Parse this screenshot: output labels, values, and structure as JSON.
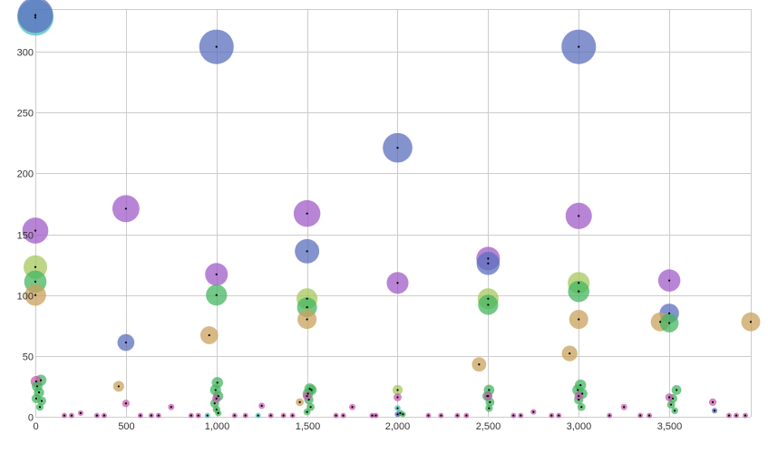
{
  "chart_data": {
    "type": "scatter",
    "title": "",
    "xlabel": "",
    "ylabel": "",
    "xlim": [
      0,
      3950
    ],
    "ylim": [
      0,
      335
    ],
    "x_ticks": [
      0,
      500,
      1000,
      1500,
      2000,
      2500,
      3000,
      3500
    ],
    "x_tick_labels": [
      "0",
      "500",
      "1,000",
      "1,500",
      "2,000",
      "2,500",
      "3,000",
      "3,500"
    ],
    "y_ticks": [
      0,
      50,
      100,
      150,
      200,
      250,
      300
    ],
    "y_tick_labels": [
      "0",
      "50",
      "100",
      "150",
      "200",
      "250",
      "300"
    ],
    "grid": true,
    "legend": "none",
    "colors": {
      "blue": "#5b6fbe",
      "purple": "#a05cc8",
      "green": "#45b660",
      "tan": "#c9a25e",
      "lime": "#a6c85c",
      "teal": "#49c0bc",
      "magenta": "#c85cb0"
    },
    "series": [
      {
        "color": "blue",
        "points": [
          {
            "x": 0,
            "y": 330,
            "size": 320
          },
          {
            "x": 1000,
            "y": 304,
            "size": 300
          },
          {
            "x": 2000,
            "y": 221,
            "size": 220
          },
          {
            "x": 3000,
            "y": 304,
            "size": 300
          },
          {
            "x": 1500,
            "y": 136,
            "size": 150
          },
          {
            "x": 2500,
            "y": 126,
            "size": 135
          },
          {
            "x": 3500,
            "y": 85,
            "size": 95
          },
          {
            "x": 500,
            "y": 61,
            "size": 72
          },
          {
            "x": 2000,
            "y": 2,
            "size": 8
          },
          {
            "x": 3750,
            "y": 5,
            "size": 8
          }
        ]
      },
      {
        "color": "teal",
        "points": [
          {
            "x": 0,
            "y": 328,
            "size": 330
          },
          {
            "x": 2000,
            "y": 7,
            "size": 9
          },
          {
            "x": 950,
            "y": 1,
            "size": 6
          },
          {
            "x": 1230,
            "y": 1,
            "size": 6
          }
        ]
      },
      {
        "color": "purple",
        "points": [
          {
            "x": 0,
            "y": 153,
            "size": 170
          },
          {
            "x": 500,
            "y": 171,
            "size": 185
          },
          {
            "x": 1500,
            "y": 167,
            "size": 180
          },
          {
            "x": 3000,
            "y": 165,
            "size": 175
          },
          {
            "x": 1000,
            "y": 117,
            "size": 130
          },
          {
            "x": 2000,
            "y": 110,
            "size": 120
          },
          {
            "x": 2500,
            "y": 130,
            "size": 140
          },
          {
            "x": 3500,
            "y": 112,
            "size": 125
          }
        ]
      },
      {
        "color": "lime",
        "points": [
          {
            "x": 0,
            "y": 123,
            "size": 140
          },
          {
            "x": 1500,
            "y": 97,
            "size": 110
          },
          {
            "x": 2500,
            "y": 97,
            "size": 110
          },
          {
            "x": 3000,
            "y": 110,
            "size": 120
          },
          {
            "x": 2000,
            "y": 22,
            "size": 26
          }
        ]
      },
      {
        "color": "green",
        "points": [
          {
            "x": 0,
            "y": 111,
            "size": 125
          },
          {
            "x": 1000,
            "y": 100,
            "size": 112
          },
          {
            "x": 1500,
            "y": 90,
            "size": 100
          },
          {
            "x": 2500,
            "y": 92,
            "size": 102
          },
          {
            "x": 3000,
            "y": 103,
            "size": 115
          },
          {
            "x": 3500,
            "y": 77,
            "size": 88
          },
          {
            "x": 30,
            "y": 30,
            "size": 32
          },
          {
            "x": 10,
            "y": 25,
            "size": 28
          },
          {
            "x": 20,
            "y": 20,
            "size": 26
          },
          {
            "x": 5,
            "y": 15,
            "size": 22
          },
          {
            "x": 35,
            "y": 13,
            "size": 20
          },
          {
            "x": 25,
            "y": 8,
            "size": 14
          },
          {
            "x": 1005,
            "y": 28,
            "size": 32
          },
          {
            "x": 995,
            "y": 22,
            "size": 30
          },
          {
            "x": 1010,
            "y": 17,
            "size": 26
          },
          {
            "x": 990,
            "y": 11,
            "size": 20
          },
          {
            "x": 1000,
            "y": 6,
            "size": 14
          },
          {
            "x": 1010,
            "y": 3,
            "size": 10
          },
          {
            "x": 1515,
            "y": 23,
            "size": 30
          },
          {
            "x": 1505,
            "y": 19,
            "size": 28
          },
          {
            "x": 1525,
            "y": 22,
            "size": 26
          },
          {
            "x": 1510,
            "y": 14,
            "size": 22
          },
          {
            "x": 1520,
            "y": 8,
            "size": 16
          },
          {
            "x": 1500,
            "y": 4,
            "size": 12
          },
          {
            "x": 2505,
            "y": 22,
            "size": 28
          },
          {
            "x": 2495,
            "y": 17,
            "size": 24
          },
          {
            "x": 2510,
            "y": 12,
            "size": 20
          },
          {
            "x": 2505,
            "y": 7,
            "size": 14
          },
          {
            "x": 3010,
            "y": 26,
            "size": 32
          },
          {
            "x": 2995,
            "y": 22,
            "size": 30
          },
          {
            "x": 3020,
            "y": 19,
            "size": 26
          },
          {
            "x": 3000,
            "y": 14,
            "size": 22
          },
          {
            "x": 3015,
            "y": 8,
            "size": 16
          },
          {
            "x": 3540,
            "y": 22,
            "size": 24
          },
          {
            "x": 3520,
            "y": 15,
            "size": 20
          },
          {
            "x": 3510,
            "y": 10,
            "size": 16
          },
          {
            "x": 3530,
            "y": 5,
            "size": 12
          },
          {
            "x": 2015,
            "y": 3,
            "size": 10
          },
          {
            "x": 2030,
            "y": 2,
            "size": 8
          }
        ]
      },
      {
        "color": "tan",
        "points": [
          {
            "x": 0,
            "y": 100,
            "size": 115
          },
          {
            "x": 1500,
            "y": 80,
            "size": 92
          },
          {
            "x": 3000,
            "y": 80,
            "size": 92
          },
          {
            "x": 3950,
            "y": 78,
            "size": 90
          },
          {
            "x": 3450,
            "y": 78,
            "size": 90
          },
          {
            "x": 960,
            "y": 67,
            "size": 80
          },
          {
            "x": 2950,
            "y": 52,
            "size": 62
          },
          {
            "x": 2450,
            "y": 43,
            "size": 52
          },
          {
            "x": 460,
            "y": 25,
            "size": 30
          },
          {
            "x": 1460,
            "y": 12,
            "size": 16
          }
        ]
      },
      {
        "color": "magenta",
        "points": [
          {
            "x": 5,
            "y": 29,
            "size": 32
          },
          {
            "x": 500,
            "y": 11,
            "size": 14
          },
          {
            "x": 1000,
            "y": 15,
            "size": 18
          },
          {
            "x": 1500,
            "y": 17,
            "size": 18
          },
          {
            "x": 2000,
            "y": 16,
            "size": 16
          },
          {
            "x": 2500,
            "y": 17,
            "size": 18
          },
          {
            "x": 3000,
            "y": 17,
            "size": 18
          },
          {
            "x": 3500,
            "y": 16,
            "size": 16
          },
          {
            "x": 3740,
            "y": 12,
            "size": 14
          },
          {
            "x": 1250,
            "y": 9,
            "size": 10
          },
          {
            "x": 1750,
            "y": 8,
            "size": 10
          },
          {
            "x": 3250,
            "y": 8,
            "size": 10
          },
          {
            "x": 750,
            "y": 8,
            "size": 10
          },
          {
            "x": 2750,
            "y": 4,
            "size": 8
          },
          {
            "x": 250,
            "y": 3,
            "size": 8
          },
          {
            "x": 160,
            "y": 1,
            "size": 6
          },
          {
            "x": 200,
            "y": 1,
            "size": 6
          },
          {
            "x": 340,
            "y": 1,
            "size": 6
          },
          {
            "x": 380,
            "y": 1,
            "size": 6
          },
          {
            "x": 580,
            "y": 1,
            "size": 6
          },
          {
            "x": 640,
            "y": 1,
            "size": 6
          },
          {
            "x": 680,
            "y": 1,
            "size": 6
          },
          {
            "x": 860,
            "y": 1,
            "size": 6
          },
          {
            "x": 900,
            "y": 1,
            "size": 6
          },
          {
            "x": 1100,
            "y": 1,
            "size": 6
          },
          {
            "x": 1160,
            "y": 1,
            "size": 6
          },
          {
            "x": 1300,
            "y": 1,
            "size": 6
          },
          {
            "x": 1370,
            "y": 1,
            "size": 6
          },
          {
            "x": 1420,
            "y": 1,
            "size": 6
          },
          {
            "x": 1660,
            "y": 1,
            "size": 6
          },
          {
            "x": 1700,
            "y": 1,
            "size": 6
          },
          {
            "x": 1860,
            "y": 1,
            "size": 6
          },
          {
            "x": 1880,
            "y": 1,
            "size": 6
          },
          {
            "x": 2170,
            "y": 1,
            "size": 6
          },
          {
            "x": 2240,
            "y": 1,
            "size": 6
          },
          {
            "x": 2330,
            "y": 1,
            "size": 6
          },
          {
            "x": 2380,
            "y": 1,
            "size": 6
          },
          {
            "x": 2640,
            "y": 1,
            "size": 6
          },
          {
            "x": 2680,
            "y": 1,
            "size": 6
          },
          {
            "x": 2850,
            "y": 1,
            "size": 6
          },
          {
            "x": 2890,
            "y": 1,
            "size": 6
          },
          {
            "x": 3170,
            "y": 1,
            "size": 6
          },
          {
            "x": 3340,
            "y": 1,
            "size": 6
          },
          {
            "x": 3390,
            "y": 1,
            "size": 6
          },
          {
            "x": 3830,
            "y": 1,
            "size": 6
          },
          {
            "x": 3870,
            "y": 1,
            "size": 6
          },
          {
            "x": 3920,
            "y": 1,
            "size": 6
          }
        ]
      }
    ]
  }
}
